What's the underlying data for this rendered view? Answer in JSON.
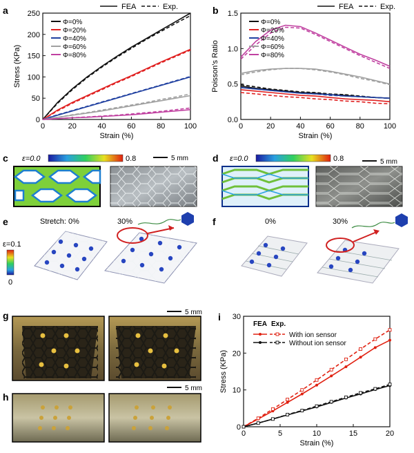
{
  "panels": {
    "a": "a",
    "b": "b",
    "c": "c",
    "d": "d",
    "e": "e",
    "f": "f",
    "g": "g",
    "h": "h",
    "i": "i"
  },
  "legend_top": {
    "fea": "FEA",
    "exp": "Exp."
  },
  "colors": {
    "phi0": "#111111",
    "phi20": "#e02020",
    "phi40": "#2040a0",
    "phi60": "#a0a0a0",
    "phi80": "#c040a0",
    "ion": "#e02010",
    "noion": "#111111"
  },
  "strain_bar": {
    "left": "ε=0.0",
    "right": "0.8"
  },
  "scale_5mm": "5 mm",
  "e_labels": {
    "stretch0": "Stretch: 0%",
    "s30": "30%",
    "eps": "ε=0.1",
    "zero": "0"
  },
  "f_labels": {
    "s0": "0%",
    "s30": "30%"
  },
  "chart_data": [
    {
      "type": "line",
      "panel": "a",
      "xlabel": "Strain (%)",
      "ylabel": "Stress (KPa)",
      "xlim": [
        0,
        100
      ],
      "ylim": [
        0,
        250
      ],
      "xticks": [
        0,
        20,
        40,
        60,
        80,
        100
      ],
      "yticks": [
        0,
        50,
        100,
        150,
        200,
        250
      ],
      "x": [
        0,
        10,
        20,
        30,
        40,
        50,
        60,
        70,
        80,
        90,
        100
      ],
      "series": [
        {
          "name": "Φ=0%",
          "fea": [
            0,
            40,
            72,
            100,
            125,
            148,
            170,
            190,
            210,
            230,
            250
          ],
          "exp": [
            0,
            38,
            70,
            98,
            123,
            146,
            167,
            188,
            207,
            226,
            244
          ]
        },
        {
          "name": "Φ=20%",
          "fea": [
            0,
            22,
            40,
            56,
            72,
            88,
            103,
            119,
            135,
            150,
            165
          ],
          "exp": [
            0,
            20,
            38,
            54,
            70,
            86,
            101,
            117,
            133,
            148,
            163
          ]
        },
        {
          "name": "Φ=40%",
          "fea": [
            0,
            10,
            20,
            30,
            40,
            50,
            60,
            70,
            80,
            90,
            100
          ],
          "exp": [
            0,
            11,
            21,
            31,
            41,
            51,
            61,
            71,
            81,
            91,
            101
          ]
        },
        {
          "name": "Φ=60%",
          "fea": [
            0,
            5,
            10,
            15,
            20,
            26,
            32,
            38,
            44,
            50,
            56
          ],
          "exp": [
            0,
            5,
            11,
            16,
            22,
            28,
            34,
            40,
            47,
            53,
            60
          ]
        },
        {
          "name": "Φ=80%",
          "fea": [
            0,
            2,
            4,
            5,
            7,
            9,
            11,
            14,
            17,
            20,
            23
          ],
          "exp": [
            0,
            2,
            4,
            6,
            8,
            10,
            13,
            16,
            19,
            23,
            27
          ]
        }
      ]
    },
    {
      "type": "line",
      "panel": "b",
      "xlabel": "Strain (%)",
      "ylabel": "Poisson's Ratio",
      "xlim": [
        0,
        100
      ],
      "ylim": [
        0,
        1.5
      ],
      "xticks": [
        0,
        20,
        40,
        60,
        80,
        100
      ],
      "yticks": [
        0.0,
        0.5,
        1.0,
        1.5
      ],
      "x": [
        0,
        10,
        20,
        30,
        40,
        50,
        60,
        70,
        80,
        90,
        100
      ],
      "series": [
        {
          "name": "Φ=0%",
          "fea": [
            0.47,
            0.44,
            0.42,
            0.4,
            0.38,
            0.37,
            0.35,
            0.34,
            0.32,
            0.31,
            0.3
          ],
          "exp": [
            0.49,
            0.46,
            0.43,
            0.41,
            0.39,
            0.38,
            0.36,
            0.35,
            0.33,
            0.31,
            0.3
          ]
        },
        {
          "name": "Φ=20%",
          "fea": [
            0.42,
            0.4,
            0.38,
            0.36,
            0.34,
            0.33,
            0.31,
            0.29,
            0.28,
            0.27,
            0.25
          ],
          "exp": [
            0.38,
            0.36,
            0.34,
            0.32,
            0.31,
            0.29,
            0.28,
            0.26,
            0.25,
            0.23,
            0.22
          ]
        },
        {
          "name": "Φ=40%",
          "fea": [
            0.45,
            0.43,
            0.41,
            0.39,
            0.37,
            0.36,
            0.35,
            0.33,
            0.32,
            0.31,
            0.3
          ],
          "exp": [
            0.45,
            0.43,
            0.41,
            0.39,
            0.37,
            0.36,
            0.34,
            0.33,
            0.32,
            0.31,
            0.3
          ]
        },
        {
          "name": "Φ=60%",
          "fea": [
            0.65,
            0.69,
            0.71,
            0.72,
            0.72,
            0.71,
            0.68,
            0.64,
            0.6,
            0.55,
            0.5
          ],
          "exp": [
            0.63,
            0.67,
            0.7,
            0.72,
            0.72,
            0.7,
            0.67,
            0.63,
            0.58,
            0.54,
            0.49
          ]
        },
        {
          "name": "Φ=80%",
          "fea": [
            0.88,
            1.1,
            1.26,
            1.33,
            1.31,
            1.22,
            1.12,
            1.02,
            0.92,
            0.84,
            0.75
          ],
          "exp": [
            0.85,
            1.05,
            1.22,
            1.3,
            1.29,
            1.2,
            1.1,
            1.0,
            0.9,
            0.81,
            0.72
          ]
        }
      ]
    },
    {
      "type": "line",
      "panel": "i",
      "xlabel": "Strain (%)",
      "ylabel": "Stress (KPa)",
      "xlim": [
        0,
        20
      ],
      "ylim": [
        0,
        30
      ],
      "xticks": [
        0,
        5,
        10,
        15,
        20
      ],
      "yticks": [
        0,
        10,
        20,
        30
      ],
      "x": [
        0,
        2,
        4,
        6,
        8,
        10,
        12,
        14,
        16,
        18,
        20
      ],
      "legend_head": {
        "fea": "FEA",
        "exp": "Exp."
      },
      "series": [
        {
          "name": "With ion sensor",
          "fea": [
            0,
            2.1,
            4.3,
            6.6,
            8.9,
            11.3,
            13.8,
            16.3,
            18.9,
            21.5,
            23.5
          ],
          "exp": [
            0,
            2.3,
            4.8,
            7.4,
            10.0,
            12.7,
            15.5,
            18.3,
            21.1,
            23.8,
            26.3
          ]
        },
        {
          "name": "Without ion sensor",
          "fea": [
            0,
            1.0,
            2.1,
            3.2,
            4.3,
            5.4,
            6.6,
            7.8,
            8.9,
            10.1,
            11.2
          ],
          "exp": [
            0,
            1.0,
            2.1,
            3.3,
            4.4,
            5.6,
            6.8,
            8.0,
            9.2,
            10.3,
            11.5
          ]
        }
      ]
    }
  ]
}
